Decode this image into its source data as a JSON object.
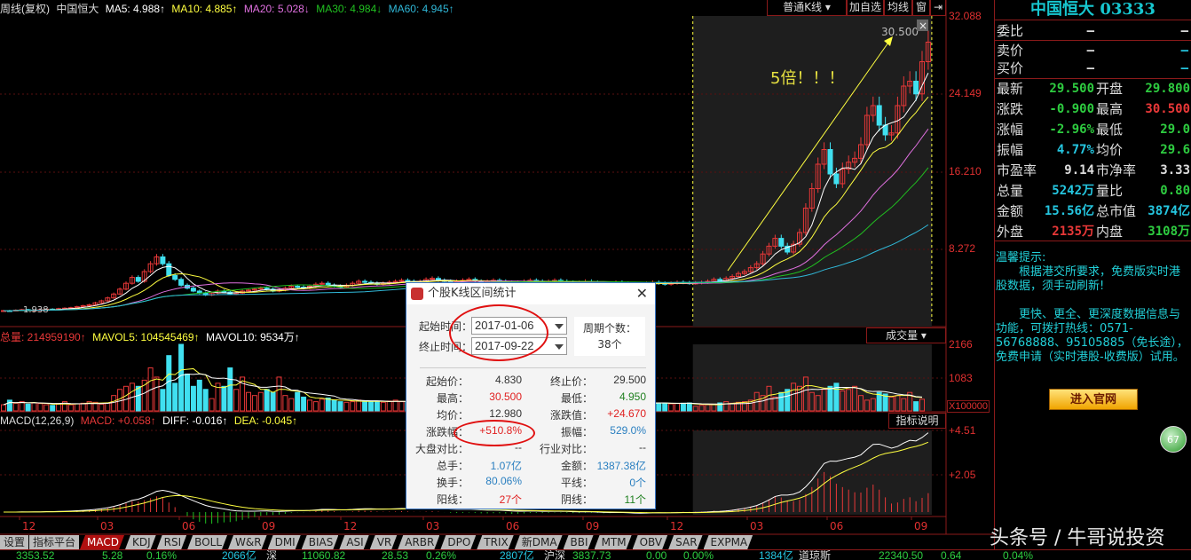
{
  "legend": {
    "title": "周线(复权)",
    "stock": "中国恒大",
    "ma5": "MA5: 4.988↑",
    "ma10": "MA10: 4.885↑",
    "ma20": "MA20: 5.028↓",
    "ma30": "MA30: 4.984↓",
    "ma60": "MA60: 4.945↑"
  },
  "toolbar": {
    "kline_type": "普通K线",
    "add_watch": "加自选",
    "ma": "均线",
    "window": "窗",
    "exit": "⇥"
  },
  "price_axis": [
    "32.088",
    "24.149",
    "16.210",
    "8.272"
  ],
  "low_label": "1.938",
  "annotation": {
    "text": "5倍！！！",
    "high": "30.500",
    "close": "×"
  },
  "volume": {
    "total": "总量: 214959190↑",
    "mavol5": "MAVOL5: 104545469↑",
    "mavol10": "MAVOL10: 9534万↑",
    "selector": "成交量",
    "axis": [
      "2166",
      "1083"
    ],
    "unit": "X100000"
  },
  "macd": {
    "label": "MACD(12,26,9)",
    "macd": "MACD: +0.058↑",
    "diff": "DIFF: -0.016↑",
    "dea": "DEA: -0.045↑",
    "explain": "指标说明",
    "axis": [
      "+4.51",
      "+2.05"
    ]
  },
  "x_axis": [
    "12",
    "03",
    "06",
    "09",
    "12",
    "03",
    "06",
    "09",
    "12",
    "03",
    "06",
    "09"
  ],
  "colors": {
    "up": "#e83838",
    "down": "#40e0f0",
    "ma5": "#ffffff",
    "ma10": "#ffff40",
    "ma20": "#e070e0",
    "ma30": "#20c020",
    "ma60": "#30b8d8",
    "highlight": "#1e1e1e",
    "frame": "#8b1a1a"
  },
  "chart_data": {
    "type": "candlestick",
    "period": "weekly",
    "closes": [
      2.0,
      1.98,
      2.05,
      2.1,
      2.0,
      2.05,
      2.1,
      2.15,
      2.1,
      2.2,
      2.25,
      2.3,
      2.4,
      2.5,
      2.6,
      2.8,
      3.0,
      3.3,
      3.7,
      4.2,
      4.8,
      5.4,
      5.0,
      6.0,
      6.8,
      7.5,
      6.8,
      5.6,
      5.2,
      4.6,
      4.3,
      4.0,
      3.8,
      3.6,
      3.8,
      4.0,
      3.9,
      3.7,
      3.8,
      4.0,
      4.1,
      4.2,
      4.3,
      4.2,
      4.0,
      4.1,
      4.3,
      4.5,
      4.4,
      4.3,
      4.5,
      4.7,
      4.8,
      4.6,
      4.5,
      4.4,
      4.6,
      4.8,
      5.0,
      4.9,
      4.8,
      4.7,
      4.8,
      4.9,
      5.0,
      5.1,
      5.0,
      4.9,
      5.0,
      5.2,
      5.3,
      5.1,
      5.0,
      4.9,
      5.0,
      5.1,
      5.2,
      5.0,
      4.9,
      5.0,
      5.1,
      5.0,
      4.9,
      4.8,
      4.9,
      5.0,
      5.1,
      5.0,
      4.9,
      5.0,
      5.1,
      5.0,
      4.9,
      4.8,
      4.9,
      5.0,
      4.9,
      4.8,
      4.7,
      4.8,
      4.9,
      4.8,
      4.7,
      4.6,
      4.7,
      4.8,
      4.9,
      4.8,
      4.7,
      4.8,
      4.9,
      4.85,
      4.8,
      4.83,
      4.9,
      5.0,
      5.2,
      5.0,
      5.3,
      5.5,
      5.8,
      6.0,
      6.4,
      6.8,
      7.8,
      8.6,
      9.4,
      8.6,
      8.0,
      8.8,
      10.0,
      12.5,
      14.5,
      17.0,
      18.5,
      16.0,
      15.0,
      16.5,
      17.2,
      17.6,
      19.0,
      22.0,
      23.0,
      21.0,
      20.0,
      20.2,
      23.0,
      25.0,
      25.5,
      24.2,
      27.5,
      29.5
    ],
    "volumes_x100000": [
      200,
      350,
      250,
      300,
      220,
      260,
      240,
      200,
      180,
      220,
      300,
      200,
      230,
      250,
      300,
      280,
      220,
      260,
      500,
      700,
      800,
      900,
      800,
      1000,
      1400,
      1100,
      700,
      1800,
      900,
      2166,
      1200,
      800,
      1000,
      700,
      400,
      900,
      800,
      1400,
      700,
      1100,
      600,
      500,
      600,
      700,
      600,
      1100,
      500,
      400,
      600,
      450,
      350,
      300,
      380,
      420,
      350,
      300,
      280,
      300,
      350,
      320,
      300,
      300,
      280,
      320,
      350,
      300,
      280,
      260,
      300,
      400,
      350,
      300,
      280,
      320,
      300,
      280,
      350,
      600,
      400,
      450,
      380,
      350,
      300,
      450,
      300,
      280,
      300,
      350,
      320,
      300,
      280,
      260,
      250,
      280,
      300,
      280,
      260,
      250,
      240,
      300,
      280,
      250,
      230,
      260,
      280,
      250,
      240,
      260,
      250,
      230,
      240,
      250,
      260,
      150,
      180,
      200,
      220,
      260,
      300,
      250,
      280,
      300,
      350,
      600,
      500,
      800,
      450,
      600,
      700,
      900,
      800,
      1100,
      600,
      500,
      700,
      800,
      900,
      650,
      700,
      800,
      500,
      350,
      400,
      600,
      550,
      450,
      500,
      400,
      600,
      300,
      380
    ],
    "price_axis_range": [
      1.938,
      32.088
    ],
    "ma_periods": [
      5,
      10,
      20,
      30,
      60
    ],
    "highlighted_range": [
      "2017-01-06",
      "2017-09-22"
    ]
  },
  "dialog": {
    "title": "个股K线区间统计",
    "close": "✕",
    "start_label": "起始时间：",
    "start_value": "2017-01-06",
    "end_label": "终止时间：",
    "end_value": "2017-09-22",
    "period_label": "周期个数：",
    "period_value": "38个",
    "stats": [
      {
        "l1": "起始价：",
        "v1": "4.830",
        "c1": "#333",
        "l2": "终止价：",
        "v2": "29.500",
        "c2": "#333"
      },
      {
        "l1": "最高：",
        "v1": "30.500",
        "c1": "#e02020",
        "l2": "最低：",
        "v2": "4.950",
        "c2": "#208020"
      },
      {
        "l1": "均价：",
        "v1": "12.980",
        "c1": "#333",
        "l2": "涨跌值：",
        "v2": "+24.670",
        "c2": "#e02020"
      },
      {
        "l1": "涨跌幅：",
        "v1": "+510.8%",
        "c1": "#e02020",
        "l2": "振幅：",
        "v2": "529.0%",
        "c2": "#2a7fc0"
      },
      {
        "l1": "大盘对比：",
        "v1": "--",
        "c1": "#333",
        "l2": "行业对比：",
        "v2": "--",
        "c2": "#333"
      },
      {
        "l1": "总手：",
        "v1": "1.07亿",
        "c1": "#2a7fc0",
        "l2": "金额：",
        "v2": "1387.38亿",
        "c2": "#2a7fc0"
      },
      {
        "l1": "换手：",
        "v1": "80.06%",
        "c1": "#2a7fc0",
        "l2": "平线：",
        "v2": "0个",
        "c2": "#2a7fc0"
      },
      {
        "l1": "阳线：",
        "v1": "27个",
        "c1": "#e02020",
        "l2": "阴线：",
        "v2": "11个",
        "c2": "#208020"
      }
    ]
  },
  "quote": {
    "title": "中国恒大 03333",
    "rows_top": [
      {
        "label": "委比",
        "v1": "–",
        "v2": "–"
      },
      {
        "label": "卖价",
        "v1": "–",
        "v2": "–"
      },
      {
        "label": "买价",
        "v1": "–",
        "v2": "–"
      }
    ],
    "rows": [
      {
        "l1": "最新",
        "v1": "29.500",
        "c1": "g",
        "l2": "开盘",
        "v2": "29.800",
        "c2": "g"
      },
      {
        "l1": "涨跌",
        "v1": "-0.900",
        "c1": "g",
        "l2": "最高",
        "v2": "30.500",
        "c2": "r"
      },
      {
        "l1": "涨幅",
        "v1": "-2.96%",
        "c1": "g",
        "l2": "最低",
        "v2": "29.0",
        "c2": "g"
      },
      {
        "l1": "振幅",
        "v1": "4.77%",
        "c1": "c",
        "l2": "均价",
        "v2": "29.6",
        "c2": "g"
      },
      {
        "l1": "市盈率",
        "v1": "9.14",
        "c1": "w",
        "l2": "市净率",
        "v2": "3.33",
        "c2": "w"
      },
      {
        "l1": "总量",
        "v1": "5242万",
        "c1": "c",
        "l2": "量比",
        "v2": "0.80",
        "c2": "g"
      },
      {
        "l1": "金额",
        "v1": "15.56亿",
        "c1": "c",
        "l2": "总市值",
        "v2": "3874亿",
        "c2": "c"
      },
      {
        "l1": "外盘",
        "v1": "2135万",
        "c1": "r",
        "l2": "内盘",
        "v2": "3108万",
        "c2": "g"
      }
    ],
    "badge": "67"
  },
  "notice": {
    "title": "温馨提示:",
    "p1": "　　根据港交所要求，免费版实时港股数据，须手动刷新!",
    "p2": "　　更快、更全、更深度数据信息与功能，可拨打热线：0571-56768888、95105885（免长途），免费申请（实时港股-收费版）试用。",
    "button": "进入官网"
  },
  "tabs": [
    "设置",
    "指标平台",
    "MACD",
    "KDJ",
    "RSI",
    "BOLL",
    "W&R",
    "DMI",
    "BIAS",
    "ASI",
    "VR",
    "ARBR",
    "DPO",
    "TRIX",
    "新DMA",
    "BBI",
    "MTM",
    "OBV",
    "SAR",
    "EXPMA"
  ],
  "status": [
    {
      "t": "3353.52",
      "c": "#2ecc40"
    },
    {
      "t": "5.28",
      "c": "#2ecc40"
    },
    {
      "t": "0.16%",
      "c": "#2ecc40"
    },
    {
      "t": "2066亿",
      "c": "#25c6e0"
    },
    {
      "t": "深",
      "c": "#ddd"
    },
    {
      "t": "11060.82",
      "c": "#2ecc40"
    },
    {
      "t": "28.53",
      "c": "#2ecc40"
    },
    {
      "t": "0.26%",
      "c": "#2ecc40"
    },
    {
      "t": "2807亿",
      "c": "#25c6e0"
    },
    {
      "t": "沪深",
      "c": "#ddd"
    },
    {
      "t": "3837.73",
      "c": "#2ecc40"
    },
    {
      "t": "0.00",
      "c": "#2ecc40"
    },
    {
      "t": "0.00%",
      "c": "#2ecc40"
    },
    {
      "t": "1384亿",
      "c": "#25c6e0"
    },
    {
      "t": "道琼斯",
      "c": "#ddd"
    },
    {
      "t": "22340.50",
      "c": "#2ecc40"
    },
    {
      "t": "0.64",
      "c": "#2ecc40"
    },
    {
      "t": "0.04%",
      "c": "#2ecc40"
    }
  ],
  "watermark": "头条号 / 牛哥说投资"
}
